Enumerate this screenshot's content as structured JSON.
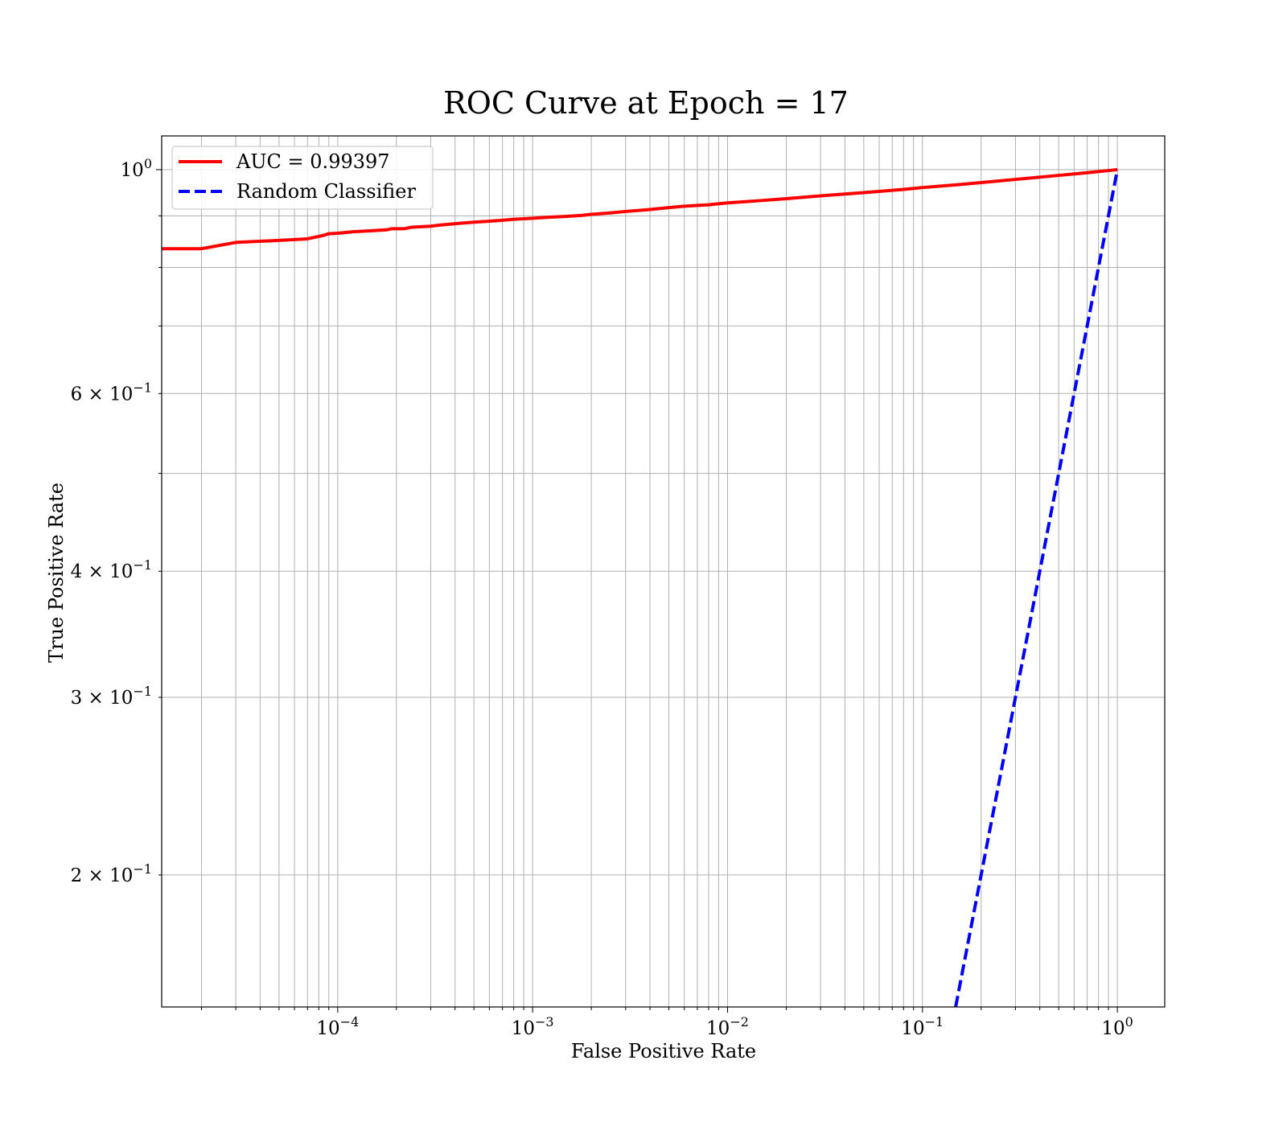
{
  "chart_data": {
    "type": "line",
    "title": "ROC Curve at Epoch = 17",
    "xlabel": "False Positive Rate",
    "ylabel": "True Positive Rate",
    "xscale": "log",
    "yscale": "log",
    "xlim": [
      1.25e-05,
      1.75
    ],
    "ylim": [
      0.148,
      1.08
    ],
    "grid": "both-major-minor",
    "legend_position": "top-left",
    "x_major_ticks": [
      {
        "value": 0.0001,
        "base": "10",
        "exp": "−4"
      },
      {
        "value": 0.001,
        "base": "10",
        "exp": "−3"
      },
      {
        "value": 0.01,
        "base": "10",
        "exp": "−2"
      },
      {
        "value": 0.1,
        "base": "10",
        "exp": "−1"
      },
      {
        "value": 1,
        "base": "10",
        "exp": "0"
      }
    ],
    "y_major_ticks": [
      {
        "value": 1,
        "base": "10",
        "exp": "0"
      }
    ],
    "y_minor_labeled_ticks": [
      {
        "value": 0.6,
        "base": "6 × 10",
        "exp": "−1"
      },
      {
        "value": 0.4,
        "base": "4 × 10",
        "exp": "−1"
      },
      {
        "value": 0.3,
        "base": "3 × 10",
        "exp": "−1"
      },
      {
        "value": 0.2,
        "base": "2 × 10",
        "exp": "−1"
      }
    ],
    "series": [
      {
        "name": "AUC = 0.99397",
        "color": "#ff0000",
        "style": "solid",
        "x": [
          1.25e-05,
          2e-05,
          3e-05,
          5e-05,
          7e-05,
          8.5e-05,
          9e-05,
          0.0001,
          0.00012,
          0.00015,
          0.00018,
          0.00019,
          0.00022,
          0.00024,
          0.0003,
          0.00033,
          0.0004,
          0.0005,
          0.0006,
          0.0007,
          0.0008,
          0.001,
          0.0012,
          0.0015,
          0.0018,
          0.002,
          0.0025,
          0.003,
          0.004,
          0.005,
          0.006,
          0.008,
          0.01,
          0.015,
          0.02,
          0.03,
          0.05,
          0.08,
          0.1,
          0.15,
          0.2,
          0.3,
          0.5,
          0.7,
          1.0
        ],
        "y": [
          0.835,
          0.835,
          0.847,
          0.851,
          0.854,
          0.861,
          0.864,
          0.865,
          0.868,
          0.87,
          0.872,
          0.874,
          0.874,
          0.877,
          0.879,
          0.881,
          0.884,
          0.887,
          0.889,
          0.891,
          0.893,
          0.895,
          0.897,
          0.899,
          0.901,
          0.903,
          0.906,
          0.909,
          0.913,
          0.917,
          0.92,
          0.923,
          0.927,
          0.932,
          0.936,
          0.942,
          0.949,
          0.956,
          0.96,
          0.966,
          0.971,
          0.978,
          0.987,
          0.993,
          1.0
        ]
      },
      {
        "name": "Random Classifier",
        "color": "#0000ff",
        "style": "dashed",
        "x": [
          0.148,
          1.0
        ],
        "y": [
          0.148,
          1.0
        ]
      }
    ]
  }
}
